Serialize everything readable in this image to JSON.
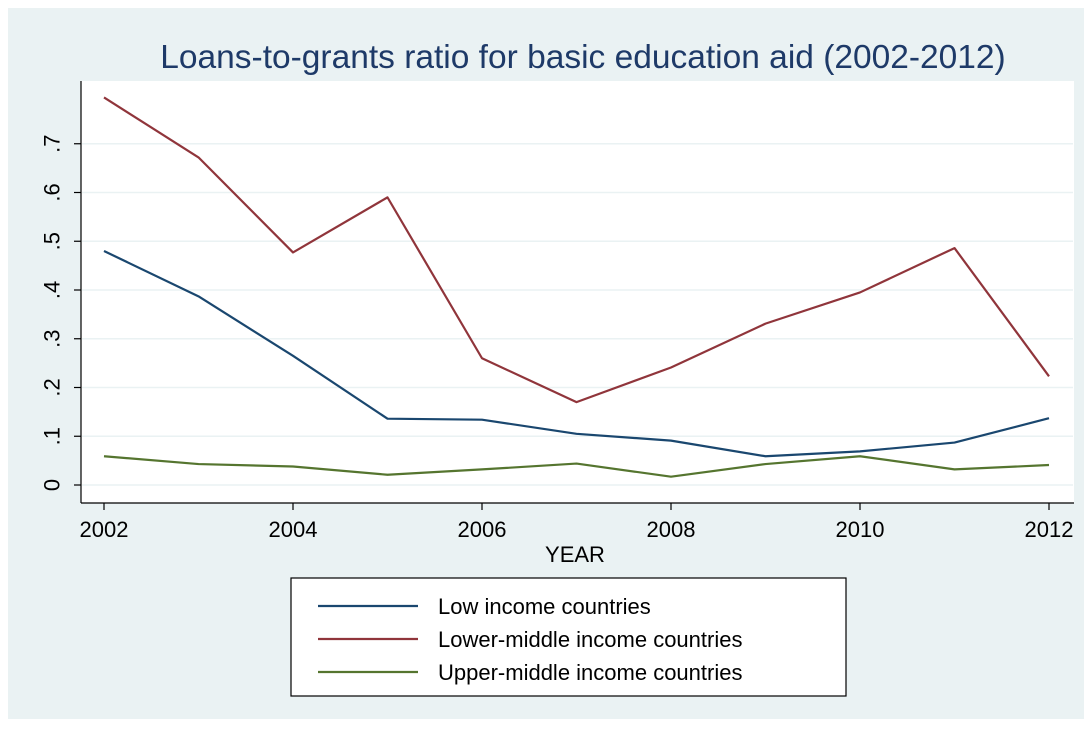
{
  "chart_data": {
    "type": "line",
    "title": "Loans-to-grants ratio for basic education aid (2002-2012)",
    "xlabel": "YEAR",
    "ylabel": "",
    "x": [
      2002,
      2003,
      2004,
      2005,
      2006,
      2007,
      2008,
      2009,
      2010,
      2011,
      2012
    ],
    "xlim": [
      2002,
      2012
    ],
    "ylim": [
      0,
      0.8
    ],
    "xticks": [
      2002,
      2004,
      2006,
      2008,
      2010,
      2012
    ],
    "xtick_labels": [
      "2002",
      "2004",
      "2006",
      "2008",
      "2010",
      "2012"
    ],
    "yticks": [
      0,
      0.1,
      0.2,
      0.3,
      0.4,
      0.5,
      0.6,
      0.7
    ],
    "ytick_labels": [
      "0",
      ".1",
      ".2",
      ".3",
      ".4",
      ".5",
      ".6",
      ".7"
    ],
    "grid": true,
    "legend_position": "bottom",
    "colors": {
      "background": "#eaf2f3",
      "plot_area": "#ffffff",
      "grid": "#eaf2f3",
      "title": "#1e3a68",
      "text": "#000000"
    },
    "series": [
      {
        "name": "Low income countries",
        "color": "#1a476f",
        "values": [
          0.48,
          0.387,
          0.265,
          0.136,
          0.134,
          0.105,
          0.091,
          0.059,
          0.069,
          0.087,
          0.137
        ]
      },
      {
        "name": "Lower-middle income countries",
        "color": "#90353b",
        "values": [
          0.795,
          0.672,
          0.477,
          0.59,
          0.26,
          0.17,
          0.241,
          0.331,
          0.395,
          0.486,
          0.223
        ]
      },
      {
        "name": "Upper-middle income countries",
        "color": "#55752f",
        "values": [
          0.059,
          0.043,
          0.038,
          0.021,
          0.032,
          0.044,
          0.017,
          0.043,
          0.059,
          0.032,
          0.041
        ]
      }
    ]
  }
}
